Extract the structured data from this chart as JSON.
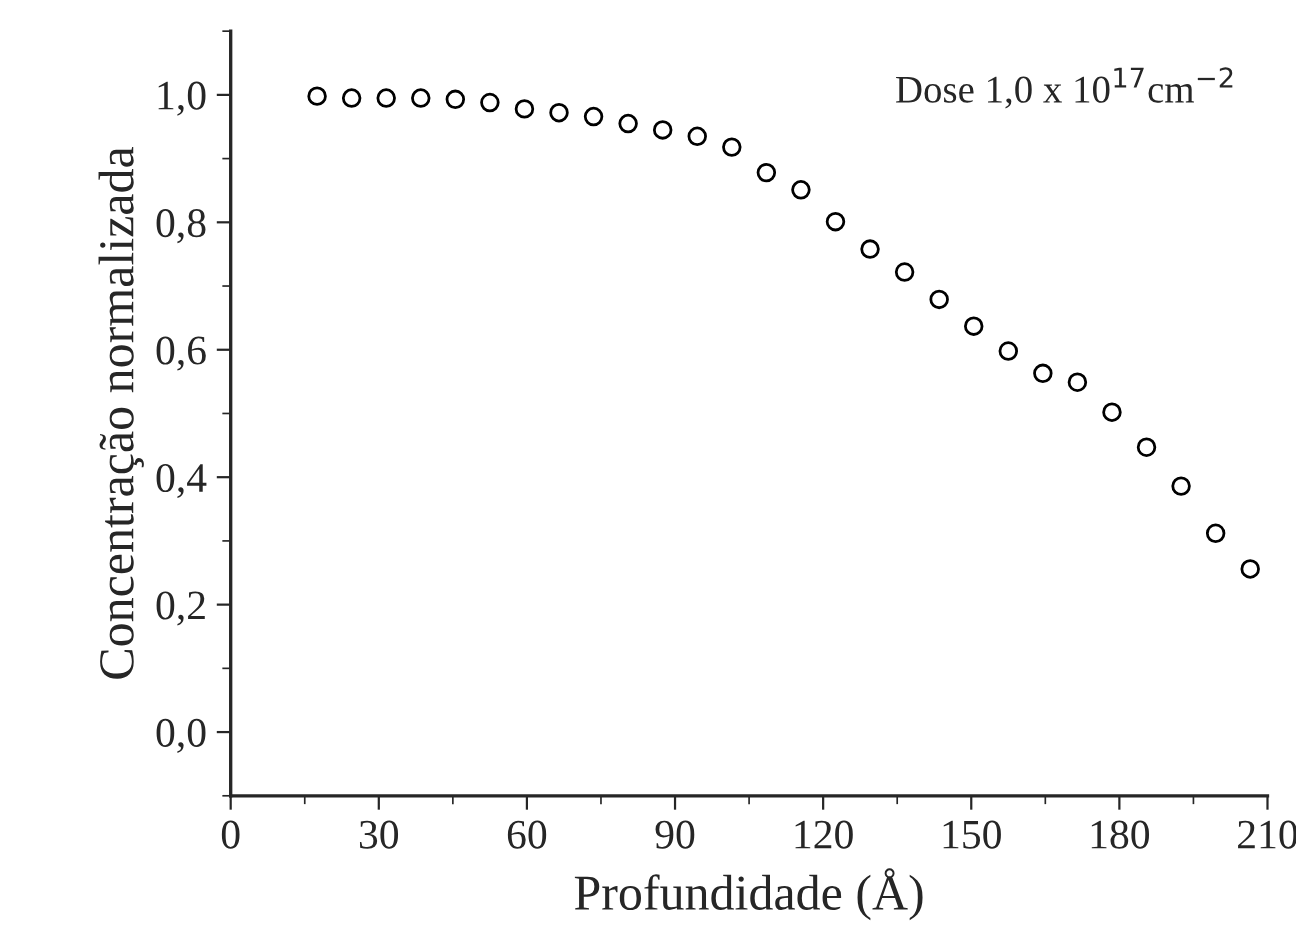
{
  "chart_data": {
    "type": "scatter",
    "xlabel": "Profundidade (Å)",
    "ylabel": "Concentração normalizada",
    "annotations": [
      "Dose 1,0 x 10$^{17}$cm$^{−2}$"
    ],
    "x": [
      17.5,
      24.5,
      31.5,
      38.5,
      45.5,
      52.5,
      59.5,
      66.5,
      73.5,
      80.5,
      87.5,
      94.5,
      101.5,
      108.5,
      115.5,
      122.5,
      129.5,
      136.5,
      143.5,
      150.5,
      157.5,
      164.5,
      171.5,
      178.5,
      185.5,
      192.5,
      199.5,
      206.5
    ],
    "series": [
      {
        "color": "#000000",
        "values": [
          0.998,
          0.995,
          0.995,
          0.995,
          0.993,
          0.988,
          0.978,
          0.972,
          0.966,
          0.955,
          0.945,
          0.935,
          0.918,
          0.878,
          0.851,
          0.801,
          0.758,
          0.722,
          0.679,
          0.637,
          0.598,
          0.563,
          0.549,
          0.502,
          0.447,
          0.386,
          0.312,
          0.256
        ]
      }
    ],
    "xlim": [
      0,
      210
    ],
    "ylim": [
      -0.1,
      1.1
    ],
    "xticks": [
      0,
      30,
      60,
      90,
      120,
      150,
      180,
      210
    ],
    "yticks": [
      {
        "value": 0.0,
        "label": "0,0"
      },
      {
        "value": 0.2,
        "label": "0,2"
      },
      {
        "value": 0.4,
        "label": "0,4"
      },
      {
        "value": 0.6,
        "label": "0,6"
      },
      {
        "value": 0.8,
        "label": "0,8"
      },
      {
        "value": 1.0,
        "label": "1,0"
      }
    ],
    "marker": "circle",
    "grid": false,
    "legend": false
  }
}
